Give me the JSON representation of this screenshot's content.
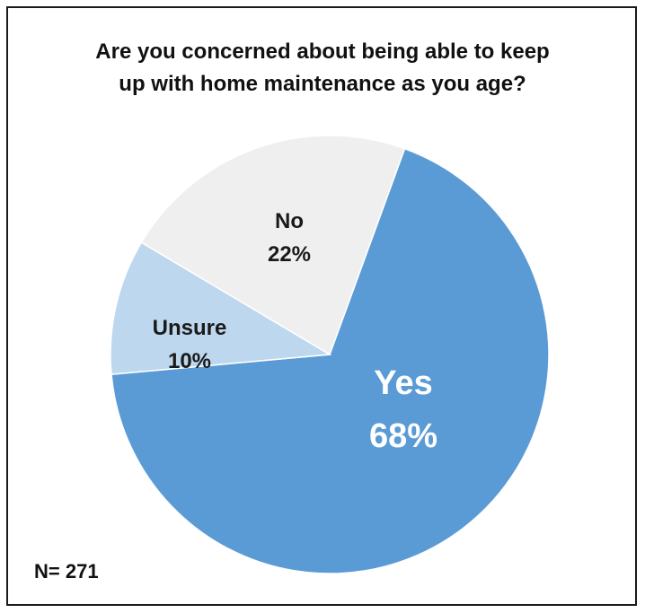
{
  "chart_data": {
    "type": "pie",
    "title_lines": [
      "Are you concerned about being able to keep",
      "up with home maintenance as you age?"
    ],
    "slices": [
      {
        "label": "Yes",
        "value": 68,
        "display": "68%",
        "color": "#5b9bd5",
        "text_color": "#ffffff"
      },
      {
        "label": "Unsure",
        "value": 10,
        "display": "10%",
        "color": "#bdd7ee",
        "text_color": "#1a1a1a"
      },
      {
        "label": "No",
        "value": 22,
        "display": "22%",
        "color": "#efefef",
        "text_color": "#1a1a1a"
      }
    ],
    "note": "N= 271"
  }
}
